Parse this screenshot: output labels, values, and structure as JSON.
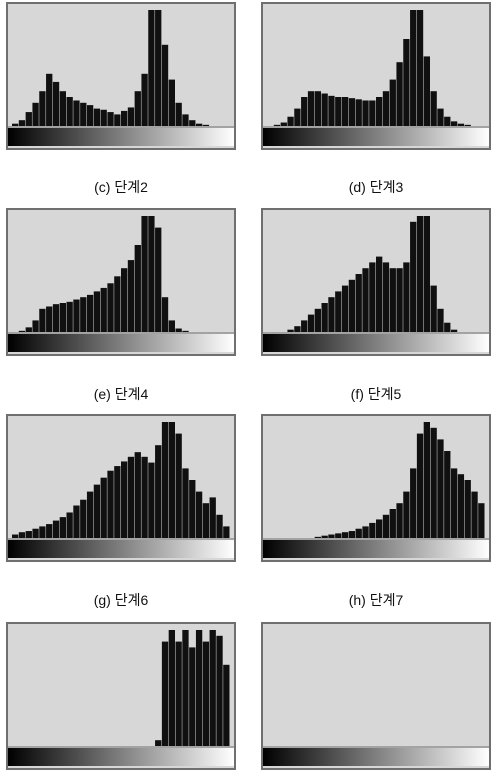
{
  "colors": {
    "panel_background": "#d7d7d7",
    "panel_border": "#6f6f6f",
    "histogram_fill": "#101010",
    "gradient_dark": "#000000",
    "gradient_light": "#ffffff"
  },
  "panels": [
    {
      "caption": ""
    },
    {
      "caption": ""
    },
    {
      "caption": "(c) 단계2"
    },
    {
      "caption": "(d) 단계3"
    },
    {
      "caption": "(e) 단계4"
    },
    {
      "caption": "(f) 단계5"
    },
    {
      "caption": "(g) 단계6"
    },
    {
      "caption": "(h) 단계7"
    }
  ],
  "chart_data": [
    {
      "type": "bar",
      "title": "",
      "xlim": [
        0,
        255
      ],
      "ylim": [
        0,
        1
      ],
      "x": [
        0,
        8,
        16,
        24,
        32,
        40,
        48,
        56,
        64,
        72,
        80,
        88,
        96,
        104,
        112,
        120,
        128,
        136,
        144,
        152,
        160,
        168,
        176,
        184,
        192,
        200,
        208,
        216,
        224,
        232,
        240,
        248
      ],
      "values": [
        0.02,
        0.05,
        0.12,
        0.2,
        0.3,
        0.45,
        0.38,
        0.3,
        0.25,
        0.22,
        0.2,
        0.18,
        0.15,
        0.14,
        0.12,
        0.1,
        0.13,
        0.16,
        0.3,
        0.45,
        1.0,
        1.0,
        0.7,
        0.4,
        0.2,
        0.1,
        0.05,
        0.02,
        0.01,
        0.0,
        0.0,
        0.0
      ]
    },
    {
      "type": "bar",
      "title": "",
      "xlim": [
        0,
        255
      ],
      "ylim": [
        0,
        1
      ],
      "x": [
        0,
        8,
        16,
        24,
        32,
        40,
        48,
        56,
        64,
        72,
        80,
        88,
        96,
        104,
        112,
        120,
        128,
        136,
        144,
        152,
        160,
        168,
        176,
        184,
        192,
        200,
        208,
        216,
        224,
        232,
        240,
        248
      ],
      "values": [
        0.0,
        0.01,
        0.03,
        0.08,
        0.15,
        0.25,
        0.3,
        0.3,
        0.28,
        0.26,
        0.25,
        0.25,
        0.24,
        0.23,
        0.22,
        0.22,
        0.25,
        0.3,
        0.4,
        0.55,
        0.75,
        1.0,
        1.0,
        0.6,
        0.3,
        0.15,
        0.08,
        0.04,
        0.02,
        0.01,
        0.0,
        0.0
      ]
    },
    {
      "type": "bar",
      "title": "",
      "xlim": [
        0,
        255
      ],
      "ylim": [
        0,
        1
      ],
      "x": [
        0,
        8,
        16,
        24,
        32,
        40,
        48,
        56,
        64,
        72,
        80,
        88,
        96,
        104,
        112,
        120,
        128,
        136,
        144,
        152,
        160,
        168,
        176,
        184,
        192,
        200,
        208,
        216,
        224,
        232,
        240,
        248
      ],
      "values": [
        0.0,
        0.01,
        0.04,
        0.1,
        0.2,
        0.22,
        0.24,
        0.25,
        0.26,
        0.28,
        0.3,
        0.32,
        0.35,
        0.38,
        0.42,
        0.48,
        0.55,
        0.62,
        0.75,
        1.0,
        1.0,
        0.9,
        0.3,
        0.1,
        0.03,
        0.01,
        0.0,
        0.0,
        0.0,
        0.0,
        0.0,
        0.0
      ]
    },
    {
      "type": "bar",
      "title": "",
      "xlim": [
        0,
        255
      ],
      "ylim": [
        0,
        1
      ],
      "x": [
        0,
        8,
        16,
        24,
        32,
        40,
        48,
        56,
        64,
        72,
        80,
        88,
        96,
        104,
        112,
        120,
        128,
        136,
        144,
        152,
        160,
        168,
        176,
        184,
        192,
        200,
        208,
        216,
        224,
        232,
        240,
        248
      ],
      "values": [
        0.0,
        0.0,
        0.0,
        0.02,
        0.05,
        0.1,
        0.15,
        0.2,
        0.25,
        0.3,
        0.35,
        0.4,
        0.45,
        0.5,
        0.55,
        0.6,
        0.65,
        0.6,
        0.55,
        0.55,
        0.6,
        0.95,
        1.0,
        1.0,
        0.4,
        0.2,
        0.08,
        0.02,
        0.0,
        0.0,
        0.0,
        0.0
      ]
    },
    {
      "type": "bar",
      "title": "",
      "xlim": [
        0,
        255
      ],
      "ylim": [
        0,
        1
      ],
      "x": [
        0,
        8,
        16,
        24,
        32,
        40,
        48,
        56,
        64,
        72,
        80,
        88,
        96,
        104,
        112,
        120,
        128,
        136,
        144,
        152,
        160,
        168,
        176,
        184,
        192,
        200,
        208,
        216,
        224,
        232,
        240,
        248
      ],
      "values": [
        0.03,
        0.05,
        0.06,
        0.08,
        0.1,
        0.12,
        0.15,
        0.18,
        0.22,
        0.28,
        0.33,
        0.4,
        0.46,
        0.52,
        0.58,
        0.62,
        0.66,
        0.7,
        0.74,
        0.7,
        0.65,
        0.8,
        1.0,
        1.0,
        0.9,
        0.6,
        0.5,
        0.4,
        0.3,
        0.35,
        0.2,
        0.1
      ]
    },
    {
      "type": "bar",
      "title": "",
      "xlim": [
        0,
        255
      ],
      "ylim": [
        0,
        1
      ],
      "x": [
        0,
        8,
        16,
        24,
        32,
        40,
        48,
        56,
        64,
        72,
        80,
        88,
        96,
        104,
        112,
        120,
        128,
        136,
        144,
        152,
        160,
        168,
        176,
        184,
        192,
        200,
        208,
        216,
        224,
        232,
        240,
        248
      ],
      "values": [
        0.0,
        0.0,
        0.0,
        0.0,
        0.0,
        0.0,
        0.0,
        0.01,
        0.02,
        0.03,
        0.04,
        0.05,
        0.06,
        0.08,
        0.1,
        0.13,
        0.16,
        0.2,
        0.25,
        0.3,
        0.4,
        0.6,
        0.9,
        1.0,
        0.95,
        0.85,
        0.75,
        0.6,
        0.55,
        0.5,
        0.4,
        0.3
      ]
    },
    {
      "type": "bar",
      "title": "",
      "xlim": [
        0,
        255
      ],
      "ylim": [
        0,
        1
      ],
      "x": [
        0,
        8,
        16,
        24,
        32,
        40,
        48,
        56,
        64,
        72,
        80,
        88,
        96,
        104,
        112,
        120,
        128,
        136,
        144,
        152,
        160,
        168,
        176,
        184,
        192,
        200,
        208,
        216,
        224,
        232,
        240,
        248
      ],
      "values": [
        0.0,
        0.0,
        0.0,
        0.0,
        0.0,
        0.0,
        0.0,
        0.0,
        0.0,
        0.0,
        0.0,
        0.0,
        0.0,
        0.0,
        0.0,
        0.0,
        0.0,
        0.0,
        0.0,
        0.0,
        0.0,
        0.05,
        0.9,
        1.0,
        0.9,
        1.0,
        0.85,
        1.0,
        0.9,
        1.0,
        0.95,
        0.7
      ]
    },
    {
      "type": "bar",
      "title": "",
      "xlim": [
        0,
        255
      ],
      "ylim": [
        0,
        1
      ],
      "x": [
        0,
        8,
        16,
        24,
        32,
        40,
        48,
        56,
        64,
        72,
        80,
        88,
        96,
        104,
        112,
        120,
        128,
        136,
        144,
        152,
        160,
        168,
        176,
        184,
        192,
        200,
        208,
        216,
        224,
        232,
        240,
        248
      ],
      "values": [
        0.0,
        0.0,
        0.0,
        0.0,
        0.0,
        0.0,
        0.0,
        0.0,
        0.0,
        0.0,
        0.0,
        0.0,
        0.0,
        0.0,
        0.0,
        0.0,
        0.0,
        0.0,
        0.0,
        0.0,
        0.0,
        0.0,
        0.0,
        0.0,
        0.0,
        0.0,
        0.0,
        0.0,
        0.0,
        0.0,
        0.0,
        0.0
      ]
    }
  ]
}
